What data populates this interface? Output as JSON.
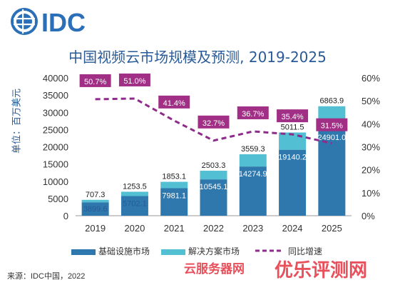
{
  "logo_text": "IDC",
  "unit_label": "单位：百万美元",
  "source": "来源：IDC中国，2022",
  "watermarks": [
    "云服务器网",
    "优乐评测网"
  ],
  "colors": {
    "base": "#2e78ad",
    "solution": "#52bfd2",
    "yoy": "#8e2b8b",
    "yoy_box": "#a02f85",
    "title": "#2a5b97"
  },
  "chart_data": {
    "type": "bar",
    "title": "中国视频云市场规模及预测, 2019-2025",
    "categories": [
      "2019",
      "2020",
      "2021",
      "2022",
      "2023",
      "2024",
      "2025"
    ],
    "series": [
      {
        "name": "基础设施市场",
        "type": "bar",
        "axis": "left",
        "values": [
          3899.6,
          5702.1,
          7981.1,
          10545.1,
          14274.9,
          19140.2,
          24901.0
        ],
        "labels": [
          "3899.6",
          "5702.1",
          "7981.1",
          "10545.1",
          "14274.9",
          "19140.2",
          "24901.0"
        ]
      },
      {
        "name": "解决方案市场",
        "type": "bar",
        "axis": "left",
        "values": [
          707.3,
          1253.5,
          1853.1,
          2503.3,
          3559.3,
          5011.5,
          6863.9
        ],
        "labels": [
          "707.3",
          "1253.5",
          "1853.1",
          "2503.3",
          "3559.3",
          "5011.5",
          "6863.9"
        ]
      },
      {
        "name": "同比增速",
        "type": "line",
        "axis": "right",
        "values": [
          50.7,
          51.0,
          41.4,
          32.7,
          36.7,
          35.4,
          31.5
        ],
        "labels": [
          "50.7%",
          "51.0%",
          "41.4%",
          "32.7%",
          "36.7%",
          "35.4%",
          "31.5%"
        ]
      }
    ],
    "y_left_ticks": [
      "0",
      "5000",
      "10000",
      "15000",
      "20000",
      "25000",
      "30000",
      "35000",
      "40000"
    ],
    "y_right_ticks": [
      "0%",
      "10%",
      "20%",
      "30%",
      "40%",
      "50%",
      "60%"
    ],
    "ylim_left": [
      0,
      40000
    ],
    "ylim_right": [
      0,
      60
    ],
    "grid": false,
    "legend_position": "bottom"
  }
}
